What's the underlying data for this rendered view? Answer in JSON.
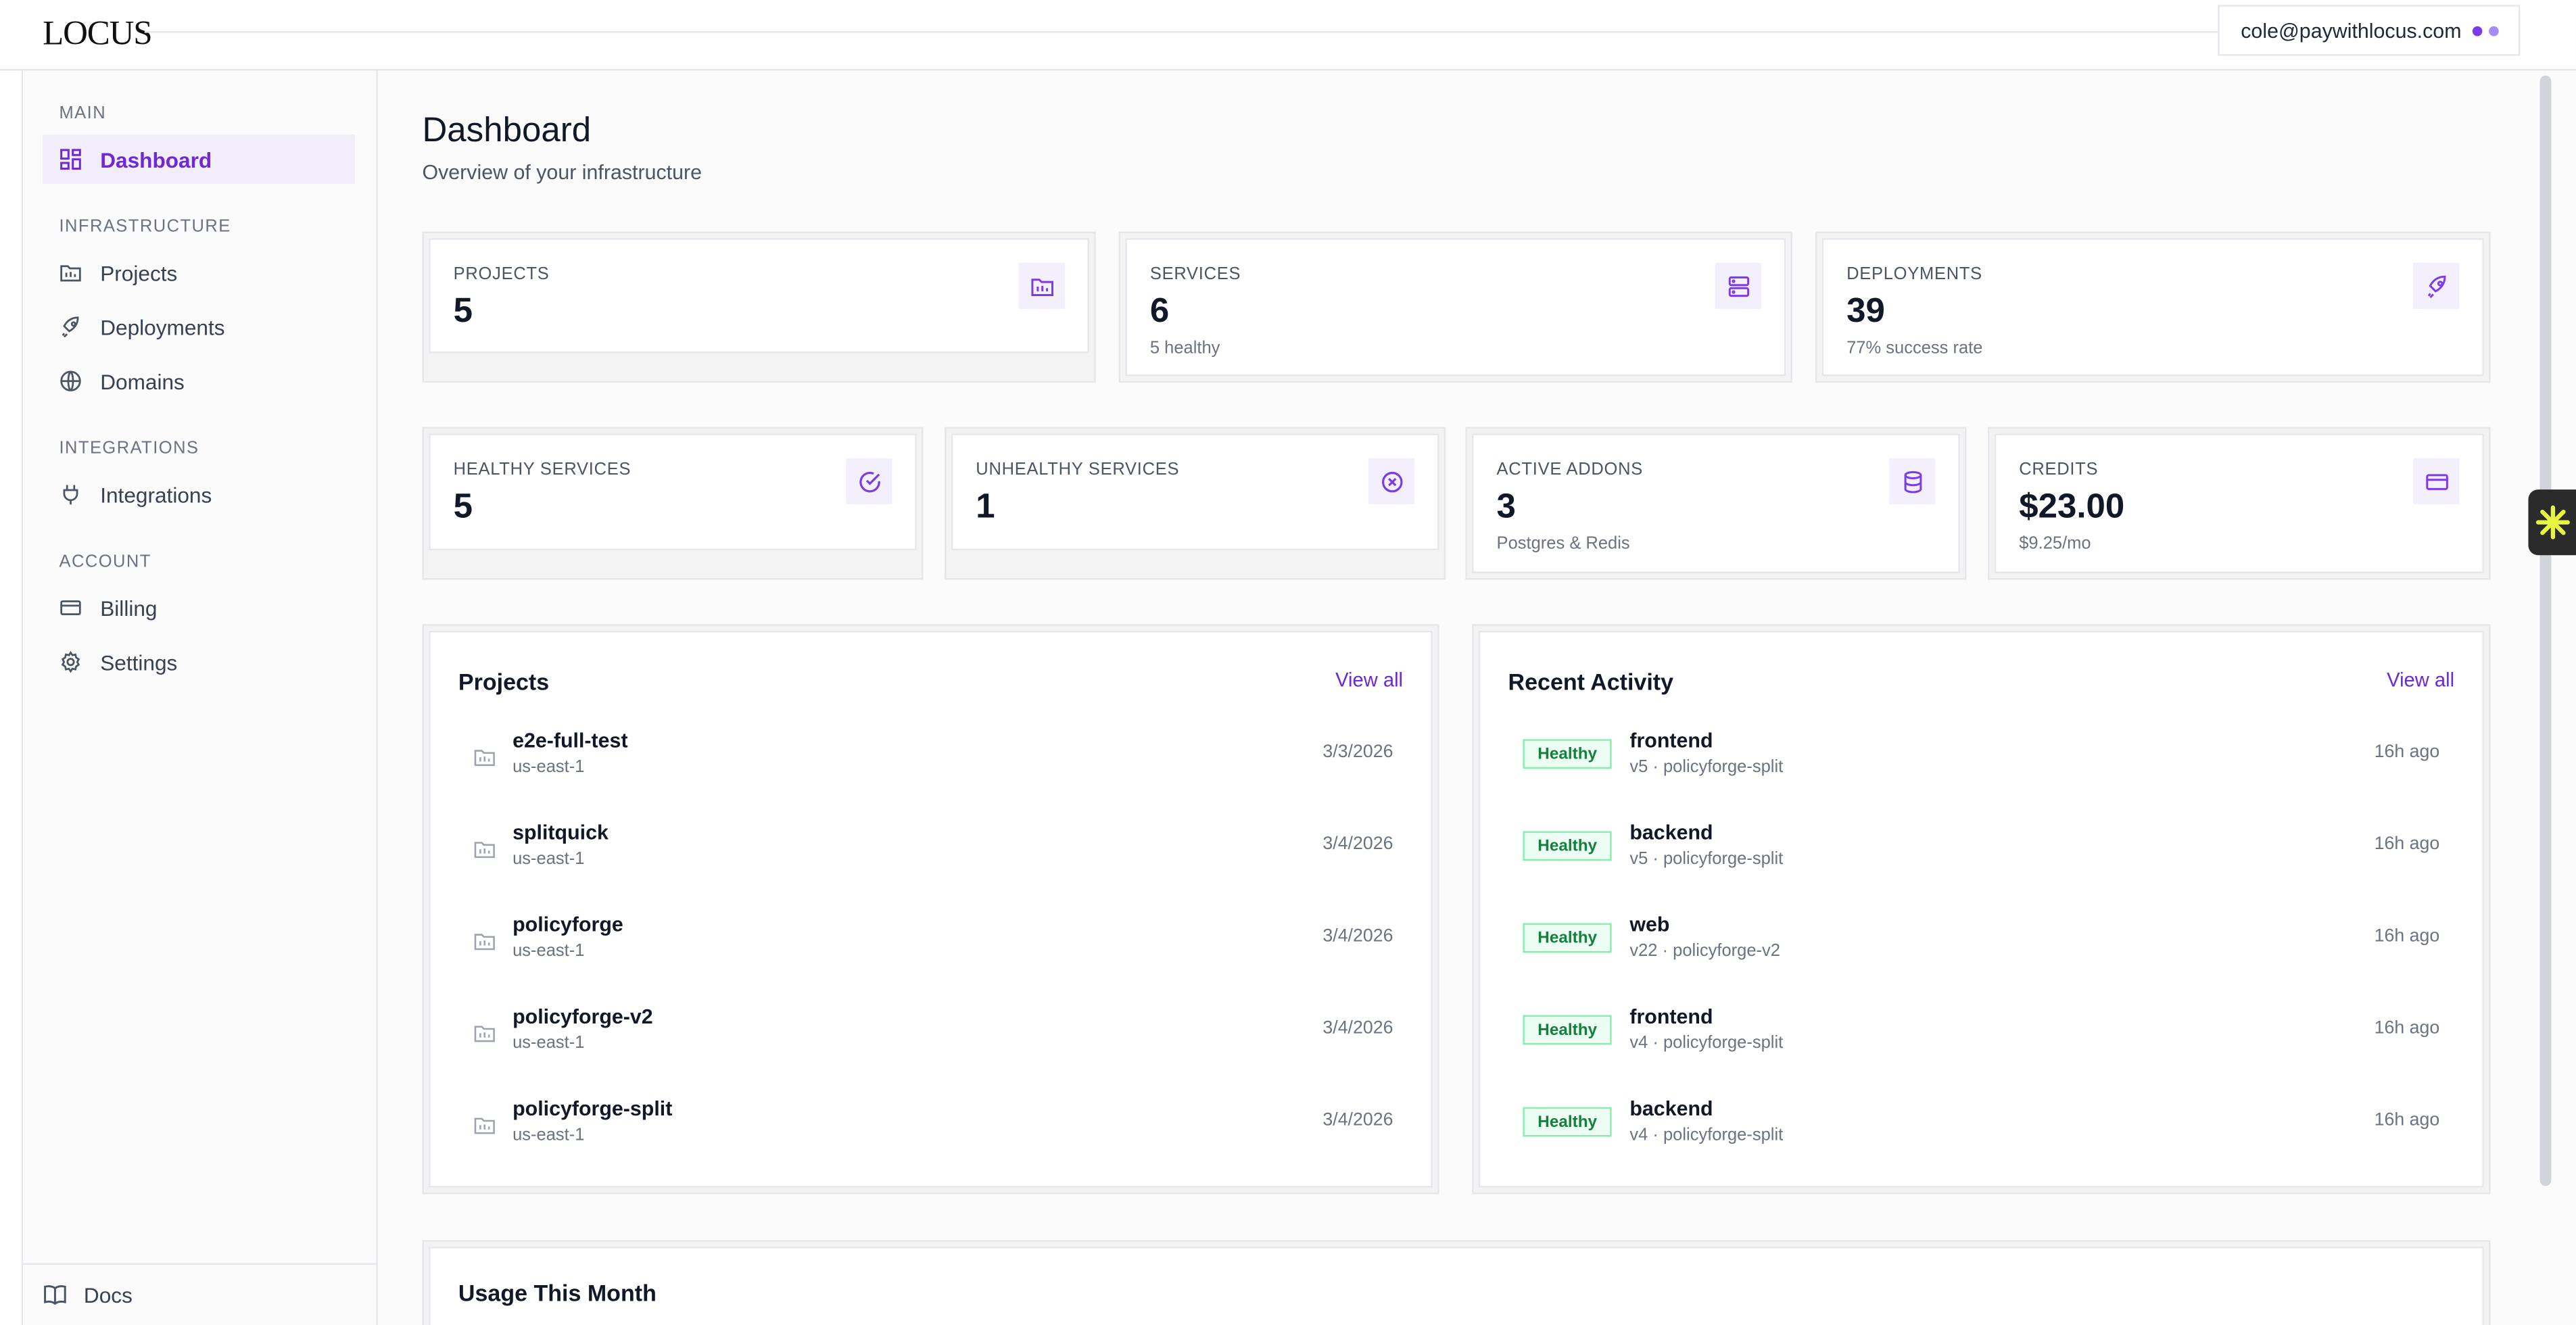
{
  "app": {
    "logo": "LOCUS",
    "user_email": "cole@paywithlocus.com"
  },
  "sidebar": {
    "sections": {
      "main": "MAIN",
      "infrastructure": "INFRASTRUCTURE",
      "integrations": "INTEGRATIONS",
      "account": "ACCOUNT"
    },
    "items": {
      "dashboard": "Dashboard",
      "projects": "Projects",
      "deployments": "Deployments",
      "domains": "Domains",
      "integrations": "Integrations",
      "billing": "Billing",
      "settings": "Settings"
    },
    "docs": "Docs"
  },
  "page": {
    "title": "Dashboard",
    "subtitle": "Overview of your infrastructure"
  },
  "stats": {
    "projects": {
      "label": "PROJECTS",
      "value": "5",
      "sub": ""
    },
    "services": {
      "label": "SERVICES",
      "value": "6",
      "sub": "5 healthy"
    },
    "deployments": {
      "label": "DEPLOYMENTS",
      "value": "39",
      "sub": "77% success rate"
    },
    "healthy": {
      "label": "HEALTHY SERVICES",
      "value": "5",
      "sub": ""
    },
    "unhealthy": {
      "label": "UNHEALTHY SERVICES",
      "value": "1",
      "sub": ""
    },
    "addons": {
      "label": "ACTIVE ADDONS",
      "value": "3",
      "sub": "Postgres & Redis"
    },
    "credits": {
      "label": "CREDITS",
      "value": "$23.00",
      "sub": "$9.25/mo"
    }
  },
  "projects_panel": {
    "title": "Projects",
    "view_all": "View all",
    "rows": [
      {
        "name": "e2e-full-test",
        "region": "us-east-1",
        "date": "3/3/2026"
      },
      {
        "name": "splitquick",
        "region": "us-east-1",
        "date": "3/4/2026"
      },
      {
        "name": "policyforge",
        "region": "us-east-1",
        "date": "3/4/2026"
      },
      {
        "name": "policyforge-v2",
        "region": "us-east-1",
        "date": "3/4/2026"
      },
      {
        "name": "policyforge-split",
        "region": "us-east-1",
        "date": "3/4/2026"
      }
    ]
  },
  "activity_panel": {
    "title": "Recent Activity",
    "view_all": "View all",
    "rows": [
      {
        "status": "Healthy",
        "name": "frontend",
        "meta": "v5 · policyforge-split",
        "time": "16h ago"
      },
      {
        "status": "Healthy",
        "name": "backend",
        "meta": "v5 · policyforge-split",
        "time": "16h ago"
      },
      {
        "status": "Healthy",
        "name": "web",
        "meta": "v22 · policyforge-v2",
        "time": "16h ago"
      },
      {
        "status": "Healthy",
        "name": "frontend",
        "meta": "v4 · policyforge-split",
        "time": "16h ago"
      },
      {
        "status": "Healthy",
        "name": "backend",
        "meta": "v4 · policyforge-split",
        "time": "16h ago"
      }
    ]
  },
  "usage_panel": {
    "title": "Usage This Month"
  },
  "colors": {
    "accent": "#6d28d9",
    "healthy_bg": "#ecfdf3",
    "healthy_text": "#15803d"
  }
}
